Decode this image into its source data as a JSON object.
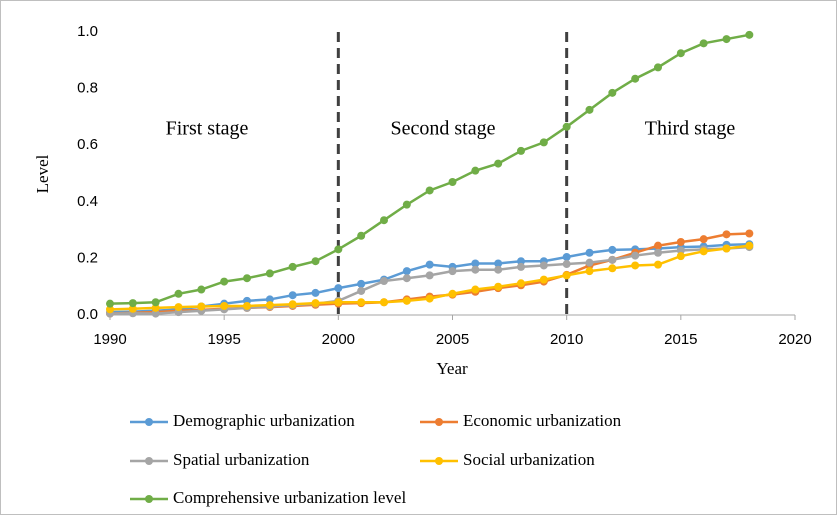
{
  "chart_data": {
    "type": "line",
    "xlabel": "Year",
    "ylabel": "Level",
    "x": [
      1990,
      1991,
      1992,
      1993,
      1994,
      1995,
      1996,
      1997,
      1998,
      1999,
      2000,
      2001,
      2002,
      2003,
      2004,
      2005,
      2006,
      2007,
      2008,
      2009,
      2010,
      2011,
      2012,
      2013,
      2014,
      2015,
      2016,
      2017,
      2018
    ],
    "series": [
      {
        "name": "Demographic urbanization",
        "color": "#5b9bd5",
        "values": [
          0.01,
          0.012,
          0.015,
          0.02,
          0.03,
          0.04,
          0.05,
          0.055,
          0.07,
          0.078,
          0.095,
          0.11,
          0.125,
          0.155,
          0.178,
          0.17,
          0.182,
          0.182,
          0.19,
          0.19,
          0.205,
          0.22,
          0.23,
          0.232,
          0.235,
          0.24,
          0.242,
          0.248,
          0.25
        ]
      },
      {
        "name": "Economic urbanization",
        "color": "#ed7d31",
        "values": [
          0.005,
          0.008,
          0.01,
          0.015,
          0.018,
          0.022,
          0.025,
          0.028,
          0.032,
          0.036,
          0.04,
          0.042,
          0.045,
          0.055,
          0.065,
          0.072,
          0.082,
          0.095,
          0.105,
          0.118,
          0.142,
          0.175,
          0.195,
          0.22,
          0.245,
          0.258,
          0.268,
          0.285,
          0.288
        ]
      },
      {
        "name": "Spatial urbanization",
        "color": "#a5a5a5",
        "values": [
          0.005,
          0.006,
          0.005,
          0.01,
          0.015,
          0.02,
          0.025,
          0.03,
          0.035,
          0.04,
          0.05,
          0.085,
          0.12,
          0.13,
          0.14,
          0.155,
          0.16,
          0.16,
          0.17,
          0.175,
          0.18,
          0.185,
          0.195,
          0.21,
          0.22,
          0.228,
          0.232,
          0.235,
          0.24
        ]
      },
      {
        "name": "Social urbanization",
        "color": "#ffc000",
        "values": [
          0.02,
          0.022,
          0.025,
          0.028,
          0.03,
          0.032,
          0.032,
          0.035,
          0.038,
          0.042,
          0.045,
          0.045,
          0.045,
          0.05,
          0.058,
          0.075,
          0.09,
          0.1,
          0.112,
          0.125,
          0.14,
          0.155,
          0.165,
          0.175,
          0.178,
          0.208,
          0.225,
          0.235,
          0.245
        ]
      },
      {
        "name": "Comprehensive urbanization  level",
        "color": "#70ad47",
        "values": [
          0.04,
          0.042,
          0.045,
          0.075,
          0.09,
          0.118,
          0.13,
          0.147,
          0.17,
          0.19,
          0.232,
          0.28,
          0.335,
          0.39,
          0.44,
          0.47,
          0.51,
          0.535,
          0.58,
          0.61,
          0.665,
          0.725,
          0.785,
          0.835,
          0.875,
          0.925,
          0.96,
          0.975,
          0.99
        ]
      }
    ],
    "xlim": [
      1990,
      2020
    ],
    "xticks": [
      1990,
      1995,
      2000,
      2005,
      2010,
      2015,
      2020
    ],
    "ylim": [
      0,
      1
    ],
    "yticks": [
      {
        "value": 0,
        "label": "0.0"
      },
      0.2,
      0.4,
      0.6,
      0.8,
      {
        "value": 1,
        "label": "1.0"
      }
    ],
    "stage_dividers": [
      2000,
      2010
    ],
    "annotations": [
      "First stage",
      "Second stage",
      "Third stage"
    ],
    "legend": "bottom"
  }
}
